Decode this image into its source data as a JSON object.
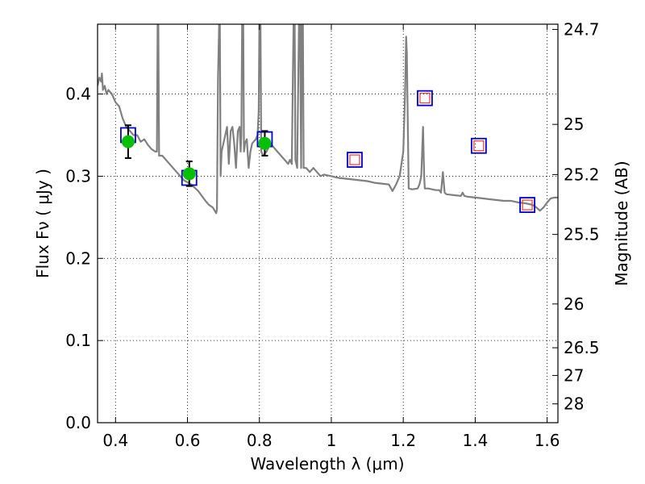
{
  "chart_data": {
    "type": "line",
    "xlabel": "Wavelength  λ (μm)",
    "ylabel": "Flux  Fν  ( μJy )",
    "ylabel_right": "Magnitude (AB)",
    "xlim": [
      0.35,
      1.63
    ],
    "ylim": [
      0.0,
      0.485
    ],
    "x_ticks": [
      0.4,
      0.6,
      0.8,
      1.0,
      1.2,
      1.4,
      1.6
    ],
    "x_tick_labels": [
      "0.4",
      "0.6",
      "0.8",
      "1",
      "1.2",
      "1.4",
      "1.6"
    ],
    "y_ticks": [
      0.0,
      0.1,
      0.2,
      0.3,
      0.4
    ],
    "y_tick_labels": [
      "0.0",
      "0.1",
      "0.2",
      "0.3",
      "0.4"
    ],
    "mag_ticks": [
      {
        "label": "24.7",
        "flux": 0.4786
      },
      {
        "label": "25",
        "flux": 0.3631
      },
      {
        "label": "25.2",
        "flux": 0.302
      },
      {
        "label": "25.5",
        "flux": 0.2291
      },
      {
        "label": "26",
        "flux": 0.1445
      },
      {
        "label": "26.5",
        "flux": 0.0912
      },
      {
        "label": "27",
        "flux": 0.0575
      },
      {
        "label": "28",
        "flux": 0.0229
      }
    ],
    "grid": true,
    "series": [
      {
        "name": "model spectrum",
        "kind": "line",
        "color": "#808080",
        "points": [
          [
            0.35,
            0.41
          ],
          [
            0.355,
            0.42
          ],
          [
            0.36,
            0.415
          ],
          [
            0.362,
            0.425
          ],
          [
            0.365,
            0.405
          ],
          [
            0.37,
            0.41
          ],
          [
            0.375,
            0.4
          ],
          [
            0.38,
            0.405
          ],
          [
            0.39,
            0.4
          ],
          [
            0.4,
            0.39
          ],
          [
            0.41,
            0.385
          ],
          [
            0.42,
            0.37
          ],
          [
            0.43,
            0.36
          ],
          [
            0.44,
            0.355
          ],
          [
            0.45,
            0.35
          ],
          [
            0.46,
            0.35
          ],
          [
            0.47,
            0.342
          ],
          [
            0.48,
            0.345
          ],
          [
            0.49,
            0.338
          ],
          [
            0.5,
            0.333
          ],
          [
            0.51,
            0.33
          ],
          [
            0.515,
            0.33
          ],
          [
            0.517,
            0.485
          ],
          [
            0.519,
            0.485
          ],
          [
            0.521,
            0.325
          ],
          [
            0.53,
            0.325
          ],
          [
            0.55,
            0.315
          ],
          [
            0.57,
            0.305
          ],
          [
            0.59,
            0.295
          ],
          [
            0.61,
            0.29
          ],
          [
            0.63,
            0.282
          ],
          [
            0.65,
            0.27
          ],
          [
            0.66,
            0.265
          ],
          [
            0.67,
            0.262
          ],
          [
            0.68,
            0.255
          ],
          [
            0.682,
            0.26
          ],
          [
            0.685,
            0.42
          ],
          [
            0.688,
            0.485
          ],
          [
            0.69,
            0.485
          ],
          [
            0.692,
            0.3
          ],
          [
            0.695,
            0.33
          ],
          [
            0.7,
            0.34
          ],
          [
            0.705,
            0.35
          ],
          [
            0.71,
            0.36
          ],
          [
            0.715,
            0.315
          ],
          [
            0.718,
            0.34
          ],
          [
            0.72,
            0.355
          ],
          [
            0.725,
            0.36
          ],
          [
            0.73,
            0.34
          ],
          [
            0.735,
            0.31
          ],
          [
            0.74,
            0.355
          ],
          [
            0.745,
            0.36
          ],
          [
            0.748,
            0.33
          ],
          [
            0.75,
            0.35
          ],
          [
            0.752,
            0.485
          ],
          [
            0.755,
            0.485
          ],
          [
            0.757,
            0.33
          ],
          [
            0.76,
            0.34
          ],
          [
            0.765,
            0.345
          ],
          [
            0.77,
            0.31
          ],
          [
            0.775,
            0.33
          ],
          [
            0.78,
            0.34
          ],
          [
            0.79,
            0.345
          ],
          [
            0.795,
            0.35
          ],
          [
            0.798,
            0.38
          ],
          [
            0.8,
            0.485
          ],
          [
            0.803,
            0.485
          ],
          [
            0.805,
            0.33
          ],
          [
            0.81,
            0.325
          ],
          [
            0.82,
            0.33
          ],
          [
            0.83,
            0.34
          ],
          [
            0.84,
            0.335
          ],
          [
            0.85,
            0.33
          ],
          [
            0.86,
            0.325
          ],
          [
            0.87,
            0.32
          ],
          [
            0.88,
            0.315
          ],
          [
            0.885,
            0.32
          ],
          [
            0.89,
            0.315
          ],
          [
            0.895,
            0.485
          ],
          [
            0.898,
            0.485
          ],
          [
            0.9,
            0.32
          ],
          [
            0.905,
            0.31
          ],
          [
            0.91,
            0.485
          ],
          [
            0.913,
            0.485
          ],
          [
            0.916,
            0.31
          ],
          [
            0.918,
            0.485
          ],
          [
            0.921,
            0.485
          ],
          [
            0.923,
            0.31
          ],
          [
            0.93,
            0.31
          ],
          [
            0.94,
            0.305
          ],
          [
            0.95,
            0.31
          ],
          [
            0.96,
            0.305
          ],
          [
            0.97,
            0.3
          ],
          [
            0.98,
            0.302
          ],
          [
            1.0,
            0.3
          ],
          [
            1.02,
            0.298
          ],
          [
            1.04,
            0.297
          ],
          [
            1.06,
            0.296
          ],
          [
            1.08,
            0.295
          ],
          [
            1.1,
            0.294
          ],
          [
            1.12,
            0.292
          ],
          [
            1.14,
            0.291
          ],
          [
            1.16,
            0.29
          ],
          [
            1.17,
            0.282
          ],
          [
            1.18,
            0.29
          ],
          [
            1.19,
            0.3
          ],
          [
            1.2,
            0.33
          ],
          [
            1.205,
            0.4
          ],
          [
            1.208,
            0.47
          ],
          [
            1.21,
            0.45
          ],
          [
            1.213,
            0.35
          ],
          [
            1.215,
            0.285
          ],
          [
            1.225,
            0.284
          ],
          [
            1.24,
            0.285
          ],
          [
            1.245,
            0.29
          ],
          [
            1.25,
            0.3
          ],
          [
            1.255,
            0.36
          ],
          [
            1.258,
            0.3
          ],
          [
            1.26,
            0.285
          ],
          [
            1.27,
            0.285
          ],
          [
            1.28,
            0.284
          ],
          [
            1.29,
            0.283
          ],
          [
            1.3,
            0.283
          ],
          [
            1.305,
            0.28
          ],
          [
            1.31,
            0.305
          ],
          [
            1.315,
            0.28
          ],
          [
            1.32,
            0.278
          ],
          [
            1.34,
            0.277
          ],
          [
            1.36,
            0.276
          ],
          [
            1.365,
            0.28
          ],
          [
            1.37,
            0.276
          ],
          [
            1.38,
            0.275
          ],
          [
            1.4,
            0.274
          ],
          [
            1.42,
            0.273
          ],
          [
            1.44,
            0.272
          ],
          [
            1.46,
            0.271
          ],
          [
            1.48,
            0.27
          ],
          [
            1.5,
            0.27
          ],
          [
            1.52,
            0.268
          ],
          [
            1.54,
            0.267
          ],
          [
            1.56,
            0.265
          ],
          [
            1.57,
            0.262
          ],
          [
            1.58,
            0.258
          ],
          [
            1.59,
            0.262
          ],
          [
            1.6,
            0.268
          ],
          [
            1.61,
            0.273
          ],
          [
            1.62,
            0.274
          ],
          [
            1.63,
            0.274
          ]
        ]
      },
      {
        "name": "model photometry (blue squares)",
        "kind": "marker-square",
        "color": "#0000cc",
        "x": [
          0.435,
          0.605,
          0.815,
          1.065,
          1.26,
          1.41,
          1.545
        ],
        "y": [
          0.35,
          0.298,
          0.345,
          0.32,
          0.395,
          0.337,
          0.265
        ]
      },
      {
        "name": "upper limits (red squares)",
        "kind": "marker-square-small",
        "color": "#ff3333",
        "x": [
          1.065,
          1.26,
          1.41,
          1.545
        ],
        "y": [
          0.32,
          0.395,
          0.337,
          0.265
        ]
      },
      {
        "name": "observed photometry (green circles)",
        "kind": "marker-circle",
        "color": "#00c000",
        "x": [
          0.435,
          0.605,
          0.815
        ],
        "y": [
          0.342,
          0.303,
          0.34
        ],
        "yerr": [
          0.02,
          0.015,
          0.015
        ]
      }
    ]
  }
}
